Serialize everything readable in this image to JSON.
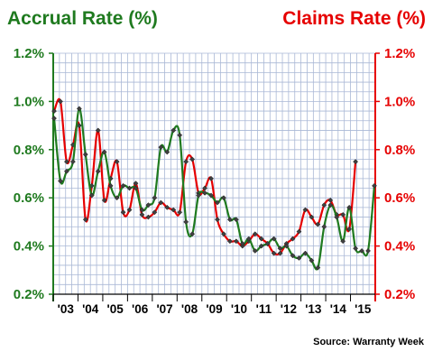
{
  "chart_data": {
    "type": "line",
    "title_left": "Accrual Rate (%)",
    "title_right": "Claims Rate (%)",
    "source": "Source: Warranty Week",
    "ylim": [
      0.2,
      1.2
    ],
    "y_ticks": [
      "0.2%",
      "0.4%",
      "0.6%",
      "0.8%",
      "1.0%",
      "1.2%"
    ],
    "y_tick_values": [
      0.2,
      0.4,
      0.6,
      0.8,
      1.0,
      1.2
    ],
    "x_ticks": [
      "'03",
      "'04",
      "'05",
      "'06",
      "'07",
      "'08",
      "'09",
      "'10",
      "'11",
      "'12",
      "'13",
      "'14",
      "'15"
    ],
    "grid": true,
    "colors": {
      "accrual": "#1f7a1f",
      "claims": "#e60000",
      "grid": "#aab8d6"
    },
    "series": [
      {
        "name": "Accrual Rate (%)",
        "axis": "left",
        "values": [
          0.93,
          0.67,
          0.71,
          0.75,
          0.97,
          0.78,
          0.61,
          0.71,
          0.79,
          0.65,
          0.6,
          0.65,
          0.64,
          0.64,
          0.55,
          0.57,
          0.6,
          0.81,
          0.79,
          0.88,
          0.86,
          0.5,
          0.45,
          0.61,
          0.62,
          0.61,
          0.58,
          0.6,
          0.51,
          0.51,
          0.41,
          0.43,
          0.38,
          0.4,
          0.41,
          0.43,
          0.39,
          0.4,
          0.36,
          0.35,
          0.37,
          0.34,
          0.31,
          0.48,
          0.57,
          0.52,
          0.42,
          0.56,
          0.39,
          0.38,
          0.38,
          0.65
        ]
      },
      {
        "name": "Claims Rate (%)",
        "axis": "right",
        "values": [
          0.96,
          1.0,
          0.75,
          0.82,
          0.9,
          0.51,
          0.65,
          0.88,
          0.59,
          0.68,
          0.75,
          0.54,
          0.55,
          0.66,
          0.53,
          0.52,
          0.54,
          0.58,
          0.56,
          0.55,
          0.54,
          0.75,
          0.76,
          0.62,
          0.64,
          0.68,
          0.51,
          0.45,
          0.42,
          0.42,
          0.4,
          0.42,
          0.45,
          0.43,
          0.41,
          0.37,
          0.37,
          0.41,
          0.43,
          0.46,
          0.55,
          0.52,
          0.49,
          0.57,
          0.59,
          0.53,
          0.53,
          0.47,
          0.75
        ]
      }
    ]
  }
}
